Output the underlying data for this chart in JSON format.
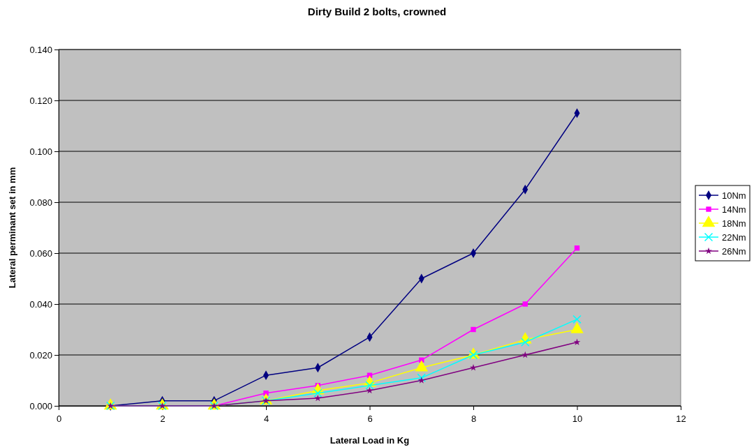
{
  "chart_data": {
    "type": "line",
    "title": "Dirty Build 2 bolts, crowned",
    "xlabel": "Lateral Load in Kg",
    "ylabel": "Lateral perminant set in mm",
    "x": [
      1,
      2,
      3,
      4,
      5,
      6,
      7,
      8,
      9,
      10
    ],
    "series": [
      {
        "name": "10Nm",
        "color": "#000080",
        "marker": "diamond",
        "values": [
          0,
          0.002,
          0.002,
          0.012,
          0.015,
          0.027,
          0.05,
          0.06,
          0.085,
          0.115
        ]
      },
      {
        "name": "14Nm",
        "color": "#ff00ff",
        "marker": "square",
        "values": [
          0,
          0,
          0,
          0.005,
          0.008,
          0.012,
          0.018,
          0.03,
          0.04,
          0.062
        ]
      },
      {
        "name": "18Nm",
        "color": "#ffff00",
        "marker": "triangle",
        "values": [
          0,
          0,
          0,
          0.002,
          0.006,
          0.009,
          0.015,
          0.02,
          0.026,
          0.03
        ]
      },
      {
        "name": "22Nm",
        "color": "#00ffff",
        "marker": "cross",
        "values": [
          0,
          0,
          0,
          0.002,
          0.005,
          0.008,
          0.011,
          0.02,
          0.025,
          0.034
        ]
      },
      {
        "name": "26Nm",
        "color": "#800080",
        "marker": "star",
        "values": [
          0,
          0,
          0,
          0.002,
          0.003,
          0.006,
          0.01,
          0.015,
          0.02,
          0.025
        ]
      }
    ],
    "xlim": [
      0,
      12
    ],
    "xticks": [
      0,
      2,
      4,
      6,
      8,
      10,
      12
    ],
    "ylim": [
      0,
      0.14
    ],
    "yticks": [
      {
        "value": 0,
        "label": "0.000"
      },
      {
        "value": 0.02,
        "label": "0.020"
      },
      {
        "value": 0.04,
        "label": "0.040"
      },
      {
        "value": 0.06,
        "label": "0.060"
      },
      {
        "value": 0.08,
        "label": "0.080"
      },
      {
        "value": 0.1,
        "label": "0.100"
      },
      {
        "value": 0.12,
        "label": "0.120"
      },
      {
        "value": 0.14,
        "label": "0.140"
      }
    ],
    "grid": "y",
    "legend": "right",
    "line_style": "solid"
  }
}
